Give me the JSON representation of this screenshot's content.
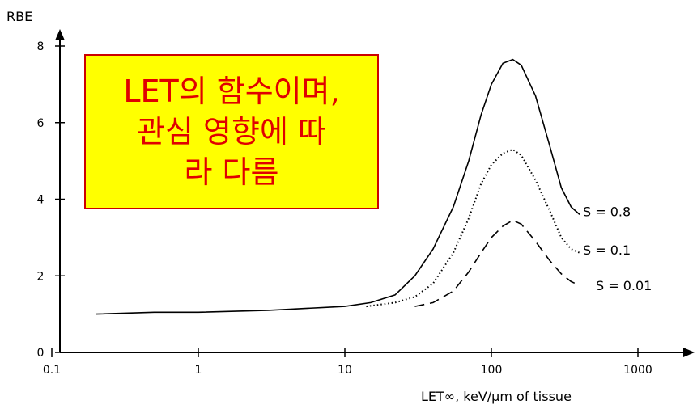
{
  "callout": {
    "text": "LET의 함수이며,\n관심 영향에 따\n라 다름",
    "background": "#ffff00",
    "text_color": "#e00000"
  },
  "chart_data": {
    "type": "line",
    "ylabel": "RBE",
    "xlabel": "LET∞, keV/μm of tissue",
    "xscale": "log",
    "xlim": [
      0.1,
      1000
    ],
    "ylim": [
      0,
      8
    ],
    "xticks": [
      "0.1",
      "1",
      "10",
      "100",
      "1000"
    ],
    "yticks": [
      "0",
      "2",
      "4",
      "6",
      "8"
    ],
    "grid": false,
    "series": [
      {
        "name": "S = 0.8",
        "style": "solid",
        "points": [
          [
            0.2,
            1.0
          ],
          [
            0.5,
            1.05
          ],
          [
            1,
            1.05
          ],
          [
            3,
            1.1
          ],
          [
            10,
            1.2
          ],
          [
            15,
            1.3
          ],
          [
            22,
            1.5
          ],
          [
            30,
            2.0
          ],
          [
            40,
            2.7
          ],
          [
            55,
            3.8
          ],
          [
            70,
            5.0
          ],
          [
            85,
            6.2
          ],
          [
            100,
            7.0
          ],
          [
            120,
            7.55
          ],
          [
            140,
            7.65
          ],
          [
            160,
            7.5
          ],
          [
            200,
            6.7
          ],
          [
            250,
            5.4
          ],
          [
            300,
            4.3
          ],
          [
            350,
            3.8
          ],
          [
            400,
            3.6
          ]
        ]
      },
      {
        "name": "S = 0.1",
        "style": "dotted",
        "points": [
          [
            14,
            1.2
          ],
          [
            22,
            1.3
          ],
          [
            30,
            1.45
          ],
          [
            40,
            1.8
          ],
          [
            55,
            2.6
          ],
          [
            70,
            3.5
          ],
          [
            85,
            4.4
          ],
          [
            100,
            4.9
          ],
          [
            120,
            5.2
          ],
          [
            140,
            5.3
          ],
          [
            160,
            5.15
          ],
          [
            200,
            4.5
          ],
          [
            250,
            3.7
          ],
          [
            300,
            3.0
          ],
          [
            350,
            2.7
          ],
          [
            400,
            2.6
          ]
        ]
      },
      {
        "name": "S = 0.01",
        "style": "dashed",
        "points": [
          [
            30,
            1.2
          ],
          [
            40,
            1.3
          ],
          [
            55,
            1.6
          ],
          [
            70,
            2.1
          ],
          [
            85,
            2.6
          ],
          [
            100,
            3.0
          ],
          [
            120,
            3.3
          ],
          [
            140,
            3.45
          ],
          [
            160,
            3.35
          ],
          [
            200,
            2.9
          ],
          [
            250,
            2.4
          ],
          [
            300,
            2.05
          ],
          [
            350,
            1.85
          ],
          [
            400,
            1.75
          ]
        ]
      }
    ]
  }
}
